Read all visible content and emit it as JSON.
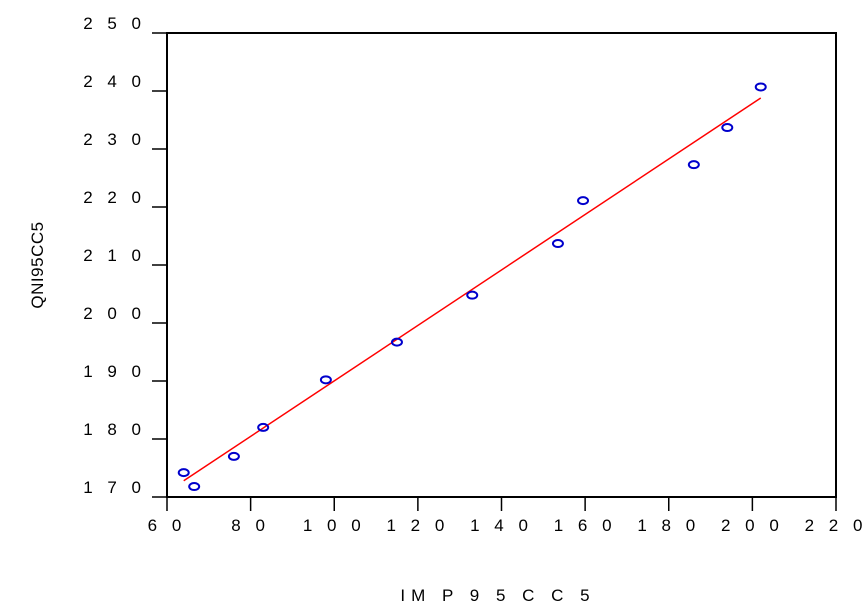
{
  "chart_data": {
    "type": "scatter",
    "xlabel": "IM P 9 5 C C 5",
    "ylabel": "QNI95CC5",
    "xlim": [
      60,
      220
    ],
    "ylim": [
      170,
      250
    ],
    "xticks": [
      60,
      80,
      100,
      120,
      140,
      160,
      180,
      200,
      220
    ],
    "yticks": [
      170,
      180,
      190,
      200,
      210,
      220,
      230,
      240,
      250
    ],
    "xtick_labels": [
      "6 0",
      "8 0",
      "1 0 0",
      "1 2 0",
      "1 4 0",
      "1 6 0",
      "1 8 0",
      "2 0 0",
      "2 2 0"
    ],
    "ytick_labels": [
      "1 7 0",
      "1 8 0",
      "1 9 0",
      "2 0 0",
      "2 1 0",
      "2 2 0",
      "2 3 0",
      "2 4 0",
      "2 5 0"
    ],
    "grid": false,
    "points": {
      "x": [
        64,
        66.5,
        76,
        83,
        98,
        115,
        133,
        153.5,
        159.5,
        186,
        194,
        202
      ],
      "y": [
        174.2,
        171.8,
        177,
        182,
        190.2,
        196.7,
        204.8,
        213.7,
        221.1,
        227.3,
        233.7,
        240.7
      ],
      "color": "#0000cc",
      "marker": "open-circle"
    },
    "fit_line": {
      "x": [
        64,
        202
      ],
      "y": [
        172.8,
        238.8
      ],
      "color": "#ff0000"
    }
  }
}
